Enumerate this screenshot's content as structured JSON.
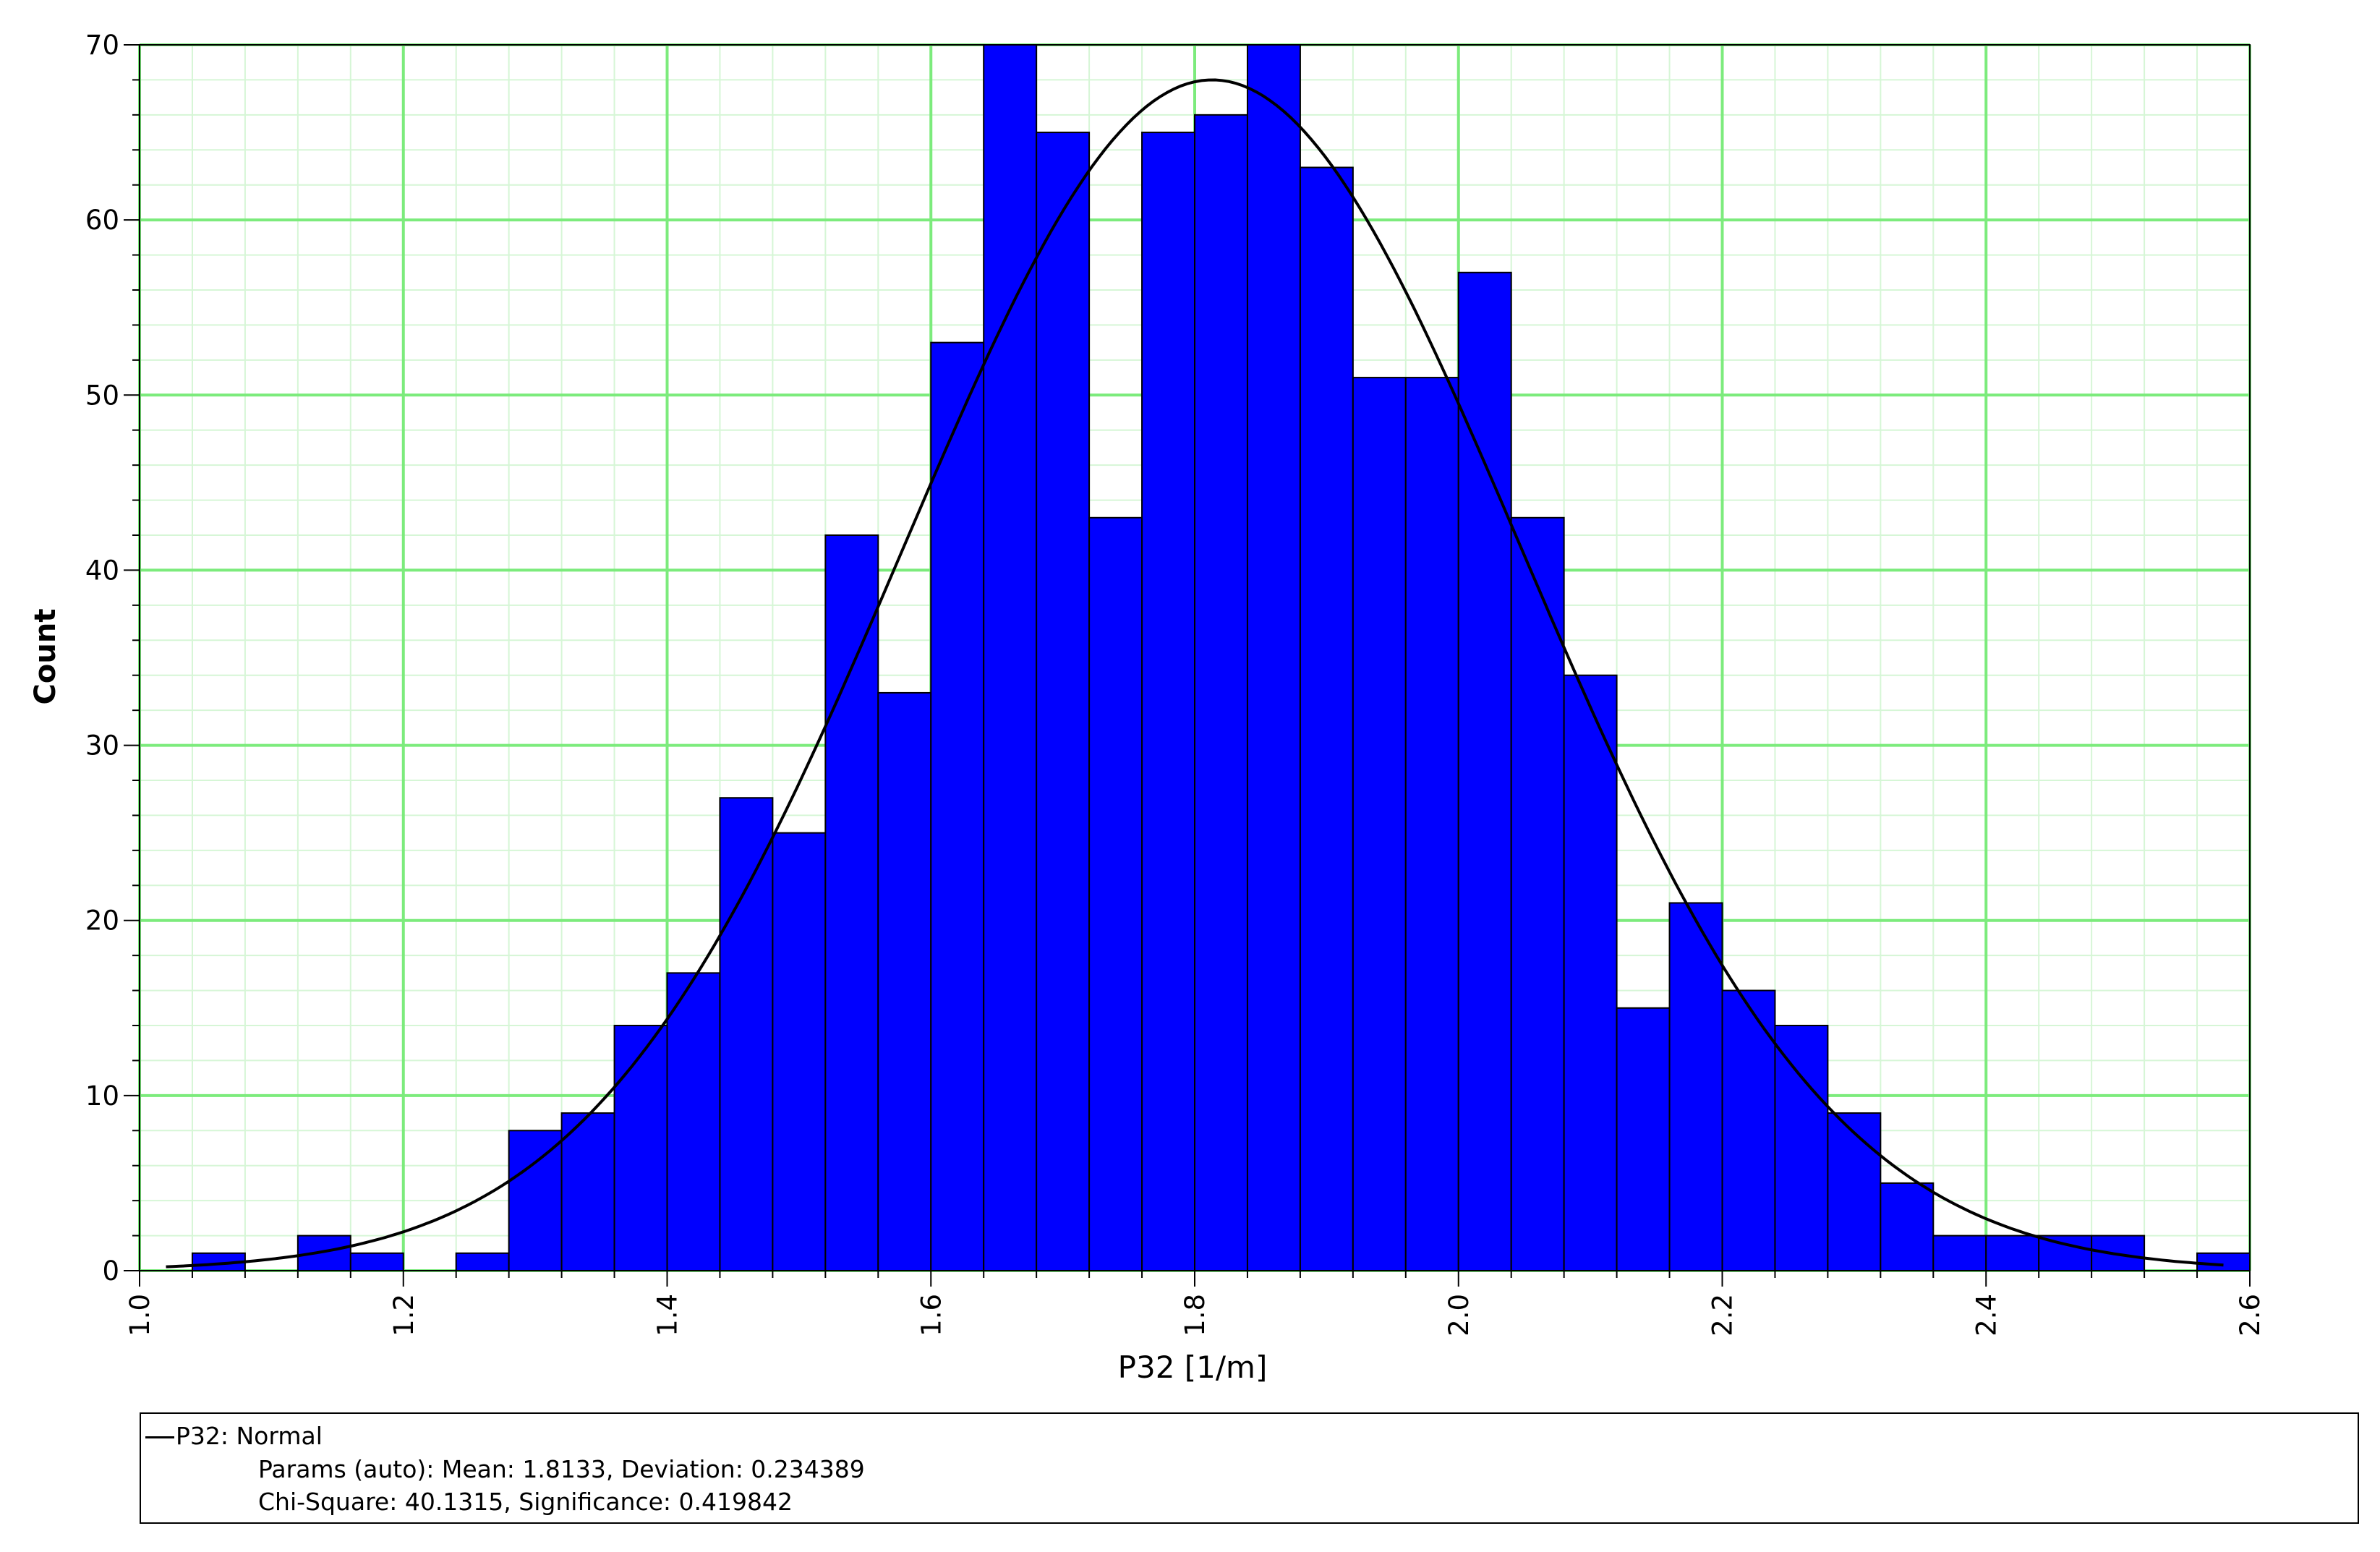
{
  "chart_data": {
    "type": "bar",
    "xlabel": "P32 [1/m]",
    "ylabel": "Count",
    "xlim": [
      1.0,
      2.6
    ],
    "ylim": [
      0,
      70
    ],
    "bin_width": 0.04,
    "x_ticks": [
      "1.0",
      "1.2",
      "1.4",
      "1.6",
      "1.8",
      "2.0",
      "2.2",
      "2.4",
      "2.6"
    ],
    "y_ticks": [
      "0",
      "10",
      "20",
      "30",
      "40",
      "50",
      "60",
      "70"
    ],
    "grid": true,
    "bins": [
      {
        "start": 1.04,
        "value": 1
      },
      {
        "start": 1.08,
        "value": 0
      },
      {
        "start": 1.12,
        "value": 2
      },
      {
        "start": 1.16,
        "value": 1
      },
      {
        "start": 1.2,
        "value": 0
      },
      {
        "start": 1.24,
        "value": 1
      },
      {
        "start": 1.28,
        "value": 8
      },
      {
        "start": 1.32,
        "value": 9
      },
      {
        "start": 1.36,
        "value": 14
      },
      {
        "start": 1.4,
        "value": 17
      },
      {
        "start": 1.44,
        "value": 27
      },
      {
        "start": 1.48,
        "value": 25
      },
      {
        "start": 1.52,
        "value": 42
      },
      {
        "start": 1.56,
        "value": 33
      },
      {
        "start": 1.6,
        "value": 53
      },
      {
        "start": 1.64,
        "value": 70
      },
      {
        "start": 1.68,
        "value": 65
      },
      {
        "start": 1.72,
        "value": 43
      },
      {
        "start": 1.76,
        "value": 65
      },
      {
        "start": 1.8,
        "value": 66
      },
      {
        "start": 1.84,
        "value": 70
      },
      {
        "start": 1.88,
        "value": 63
      },
      {
        "start": 1.92,
        "value": 51
      },
      {
        "start": 1.96,
        "value": 51
      },
      {
        "start": 2.0,
        "value": 57
      },
      {
        "start": 2.04,
        "value": 43
      },
      {
        "start": 2.08,
        "value": 34
      },
      {
        "start": 2.12,
        "value": 15
      },
      {
        "start": 2.16,
        "value": 21
      },
      {
        "start": 2.2,
        "value": 16
      },
      {
        "start": 2.24,
        "value": 14
      },
      {
        "start": 2.28,
        "value": 9
      },
      {
        "start": 2.32,
        "value": 5
      },
      {
        "start": 2.36,
        "value": 2
      },
      {
        "start": 2.4,
        "value": 2
      },
      {
        "start": 2.44,
        "value": 2
      },
      {
        "start": 2.48,
        "value": 2
      },
      {
        "start": 2.52,
        "value": 0
      },
      {
        "start": 2.56,
        "value": 1
      }
    ],
    "fit": {
      "distribution": "Normal",
      "mean": 1.8133,
      "deviation": 0.234389,
      "peak_count": 68,
      "x_range": [
        1.02,
        2.58
      ]
    },
    "colors": {
      "bar_fill": "#0000FF",
      "bar_stroke": "#000000",
      "grid_major": "#7CEB7C",
      "grid_minor": "#D6F6D6",
      "fit_line": "#000000"
    }
  },
  "legend": {
    "line1": "P32: Normal",
    "line2": "Params (auto): Mean: 1.8133, Deviation: 0.234389",
    "line3": "Chi-Square: 40.1315, Significance: 0.419842"
  }
}
